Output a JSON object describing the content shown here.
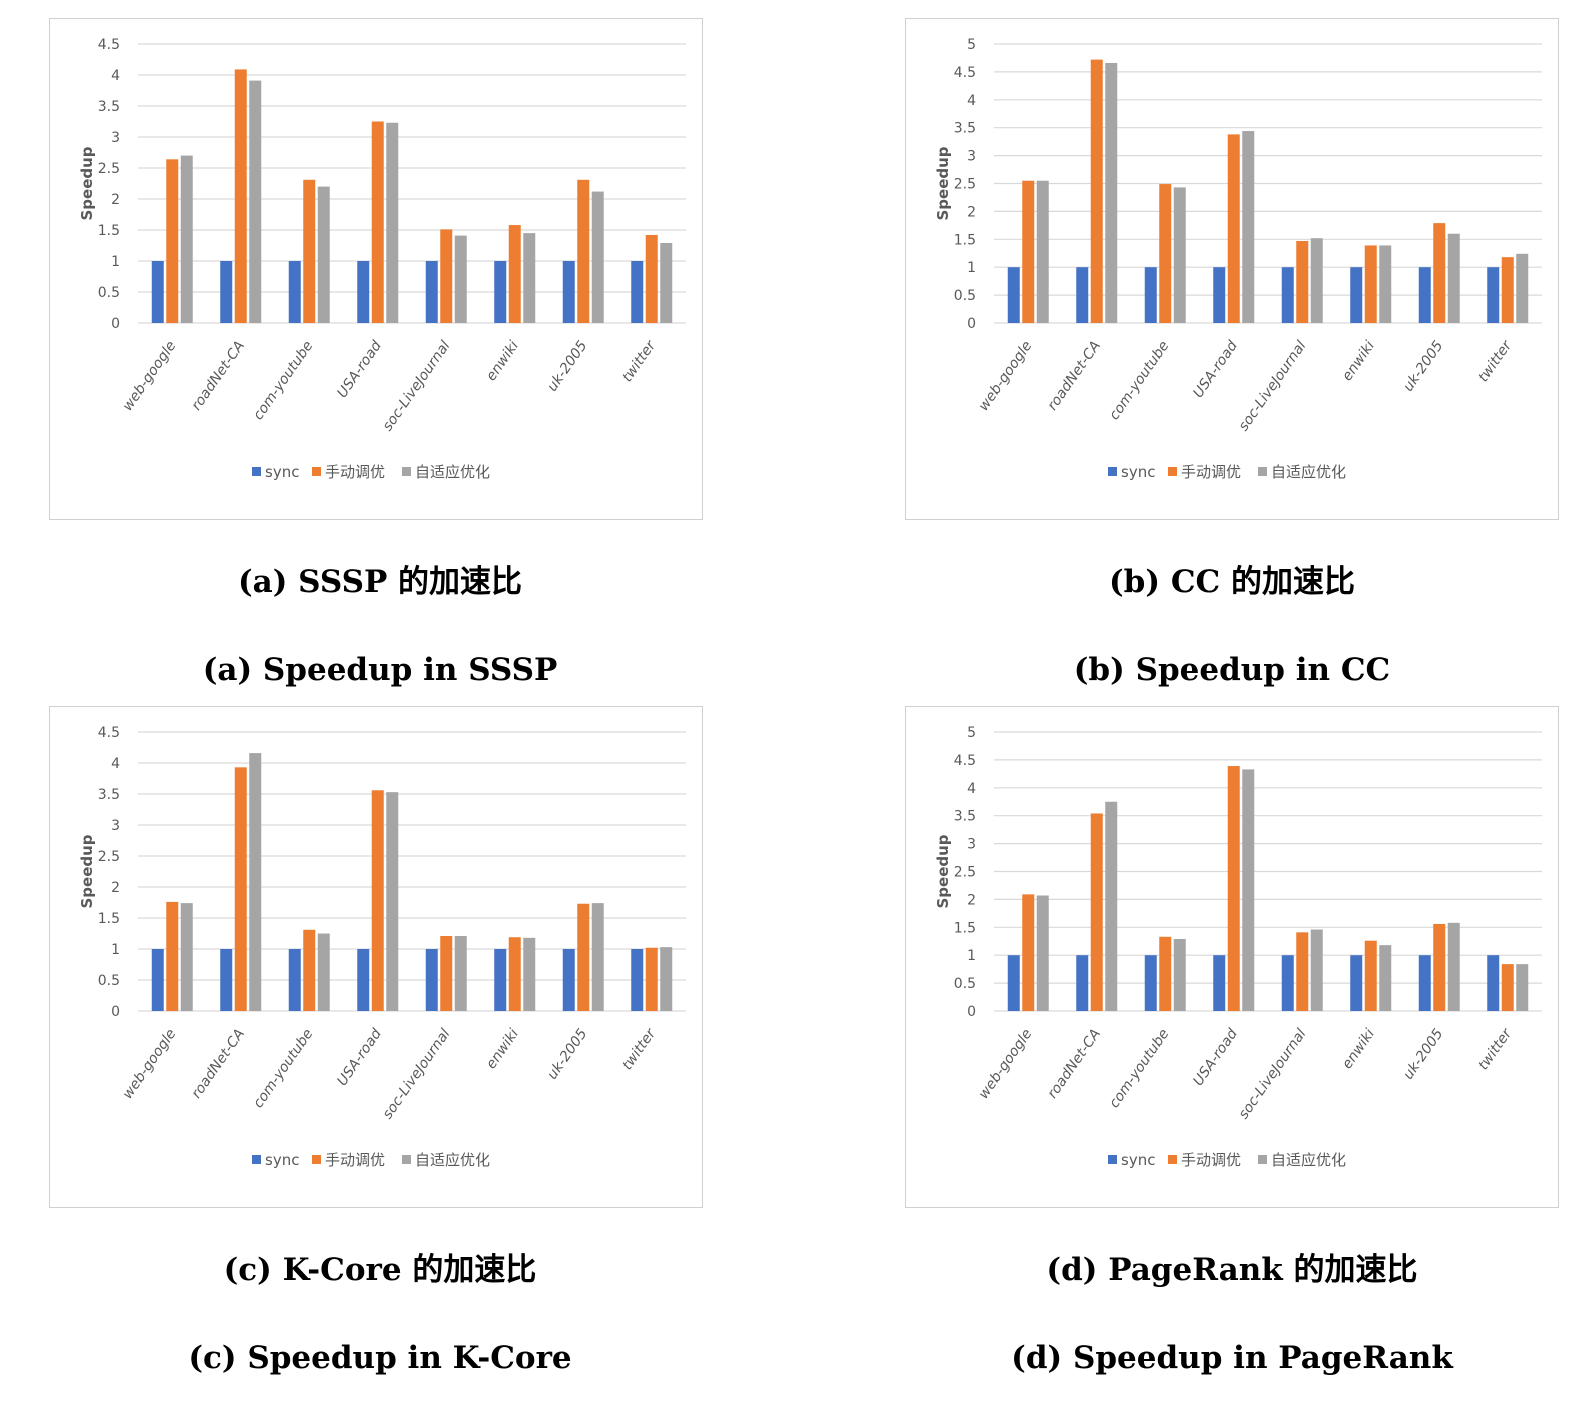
{
  "colors": {
    "sync": "#4472C4",
    "manual": "#ED7D31",
    "adaptive": "#A5A5A5",
    "grid": "#d9d9d9",
    "text": "#595959"
  },
  "captions": [
    {
      "zh": "(a) SSSP 的加速比",
      "en": "(a) Speedup in SSSP"
    },
    {
      "zh": "(b) CC 的加速比",
      "en": "(b) Speedup in CC"
    },
    {
      "zh": "(c) K-Core 的加速比",
      "en": "(c) Speedup in K-Core"
    },
    {
      "zh": "(d) PageRank 的加速比",
      "en": "(d) Speedup in PageRank"
    }
  ],
  "chart_data": [
    {
      "type": "bar",
      "ylabel": "Speedup",
      "ylim": [
        0,
        4.5
      ],
      "ytick_step": 0.5,
      "grid": true,
      "legend_position": "bottom",
      "categories": [
        "web-google",
        "roadNet-CA",
        "com-youtube",
        "USA-road",
        "soc-LiveJournal",
        "enwiki",
        "uk-2005",
        "twitter"
      ],
      "series": [
        {
          "name": "sync",
          "values": [
            1,
            1,
            1,
            1,
            1,
            1,
            1,
            1
          ]
        },
        {
          "name": "手动调优",
          "values": [
            2.64,
            4.09,
            2.31,
            3.25,
            1.51,
            1.58,
            2.31,
            1.42
          ]
        },
        {
          "name": "自适应优化",
          "values": [
            2.7,
            3.91,
            2.2,
            3.23,
            1.41,
            1.45,
            2.12,
            1.29
          ]
        }
      ]
    },
    {
      "type": "bar",
      "ylabel": "Speedup",
      "ylim": [
        0,
        5
      ],
      "ytick_step": 0.5,
      "grid": true,
      "legend_position": "bottom",
      "categories": [
        "web-google",
        "roadNet-CA",
        "com-youtube",
        "USA-road",
        "soc-LiveJournal",
        "enwiki",
        "uk-2005",
        "twitter"
      ],
      "series": [
        {
          "name": "sync",
          "values": [
            1,
            1,
            1,
            1,
            1,
            1,
            1,
            1
          ]
        },
        {
          "name": "手动调优",
          "values": [
            2.55,
            4.72,
            2.49,
            3.38,
            1.47,
            1.39,
            1.79,
            1.18
          ]
        },
        {
          "name": "自适应优化",
          "values": [
            2.55,
            4.66,
            2.43,
            3.44,
            1.52,
            1.39,
            1.6,
            1.24
          ]
        }
      ]
    },
    {
      "type": "bar",
      "ylabel": "Speedup",
      "ylim": [
        0,
        4.5
      ],
      "ytick_step": 0.5,
      "grid": true,
      "legend_position": "bottom",
      "categories": [
        "web-google",
        "roadNet-CA",
        "com-youtube",
        "USA-road",
        "soc-LiveJournal",
        "enwiki",
        "uk-2005",
        "twitter"
      ],
      "series": [
        {
          "name": "sync",
          "values": [
            1,
            1,
            1,
            1,
            1,
            1,
            1,
            1
          ]
        },
        {
          "name": "手动调优",
          "values": [
            1.76,
            3.93,
            1.31,
            3.56,
            1.21,
            1.19,
            1.73,
            1.02
          ]
        },
        {
          "name": "自适应优化",
          "values": [
            1.74,
            4.16,
            1.25,
            3.53,
            1.21,
            1.18,
            1.74,
            1.03
          ]
        }
      ]
    },
    {
      "type": "bar",
      "ylabel": "Speedup",
      "ylim": [
        0,
        5
      ],
      "ytick_step": 0.5,
      "grid": true,
      "legend_position": "bottom",
      "categories": [
        "web-google",
        "roadNet-CA",
        "com-youtube",
        "USA-road",
        "soc-LiveJournal",
        "enwiki",
        "uk-2005",
        "twitter"
      ],
      "series": [
        {
          "name": "sync",
          "values": [
            1,
            1,
            1,
            1,
            1,
            1,
            1,
            1
          ]
        },
        {
          "name": "手动调优",
          "values": [
            2.09,
            3.54,
            1.33,
            4.39,
            1.41,
            1.26,
            1.56,
            0.84
          ]
        },
        {
          "name": "自适应优化",
          "values": [
            2.07,
            3.75,
            1.29,
            4.33,
            1.46,
            1.18,
            1.58,
            0.84
          ]
        }
      ]
    }
  ]
}
